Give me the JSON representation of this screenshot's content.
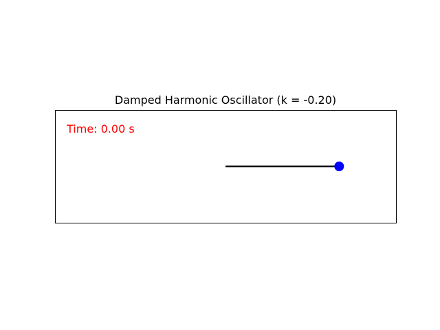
{
  "chart_data": {
    "type": "line",
    "title": "Damped Harmonic Oscillator (k = -0.20)",
    "annotation": "Time: 0.00 s",
    "annotation_color": "#ff0000",
    "xlim": [
      -1.5,
      1.5
    ],
    "ylim": [
      -0.5,
      0.5
    ],
    "grid": false,
    "axes_visible": false,
    "series": [
      {
        "x": [
          0,
          1.0
        ],
        "y": [
          0,
          0
        ],
        "color": "#000000"
      }
    ],
    "bob": {
      "x": 1.0,
      "y": 0,
      "color": "#0000ff"
    }
  }
}
